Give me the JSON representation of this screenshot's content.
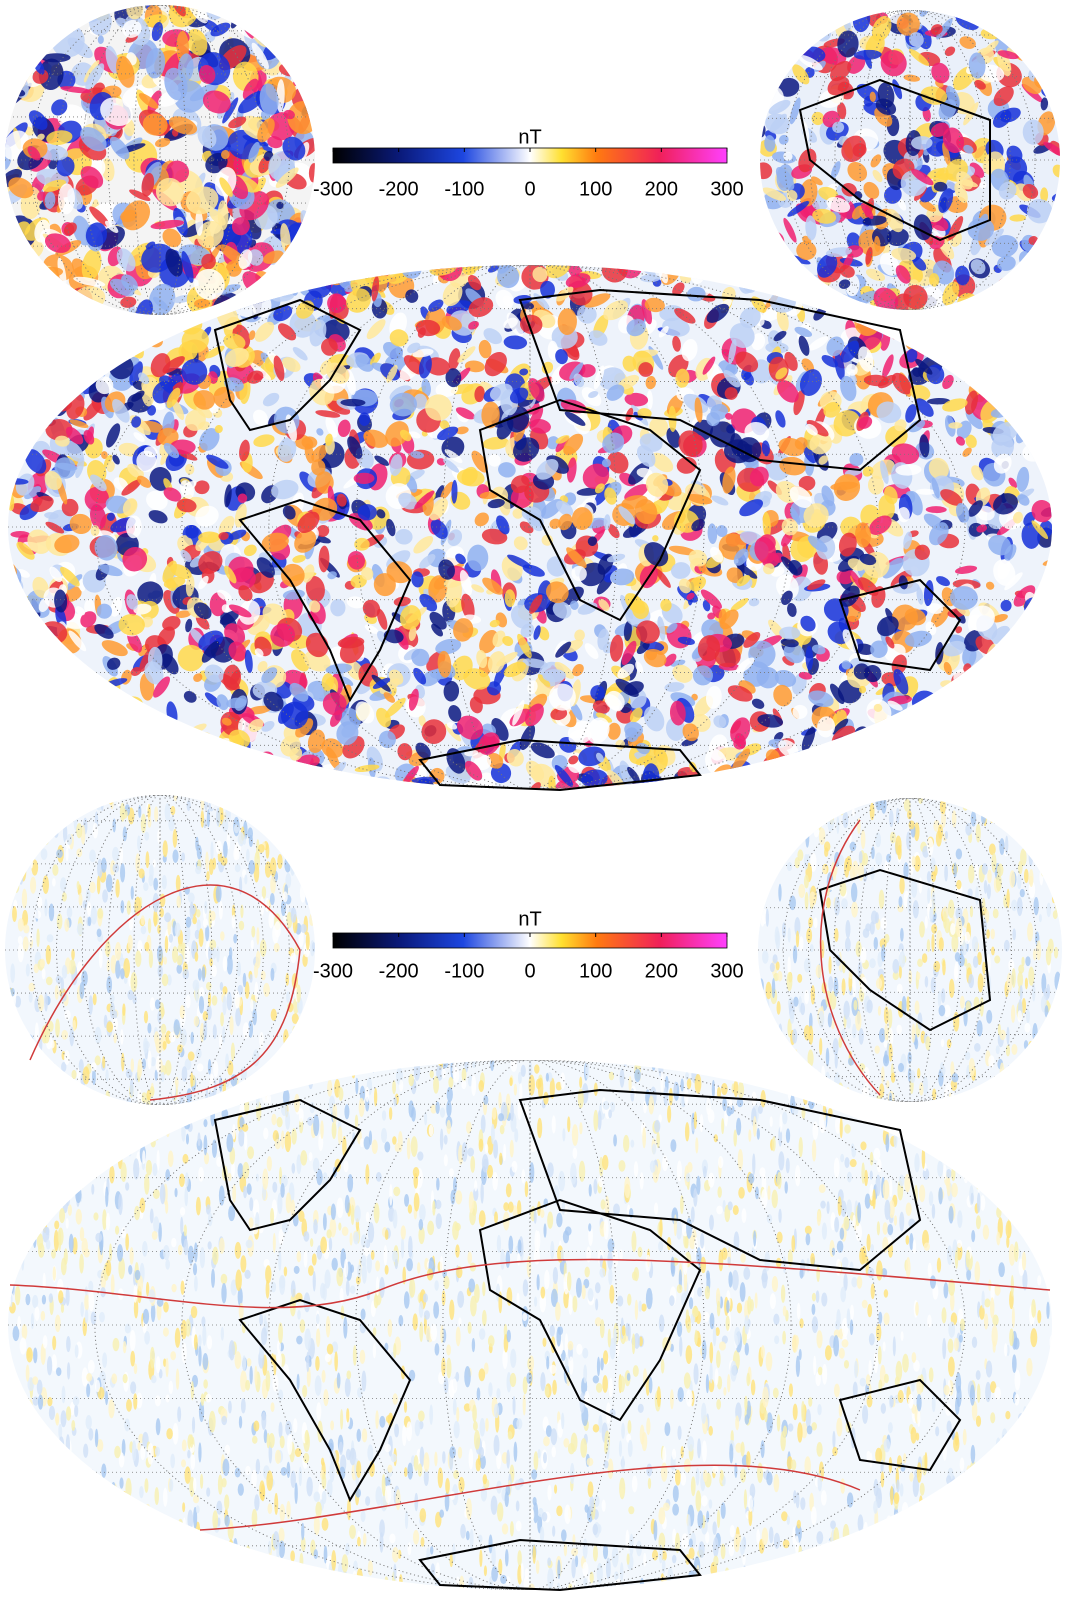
{
  "panels": [
    {
      "colorbar": {
        "label": "nT",
        "lim": [
          -300,
          300
        ],
        "ticks": [
          -300,
          -200,
          -100,
          0,
          100,
          200,
          300
        ]
      }
    },
    {
      "colorbar": {
        "label": "nT",
        "lim": [
          -300,
          300
        ],
        "ticks": [
          -300,
          -200,
          -100,
          0,
          100,
          200,
          300
        ]
      }
    }
  ]
}
